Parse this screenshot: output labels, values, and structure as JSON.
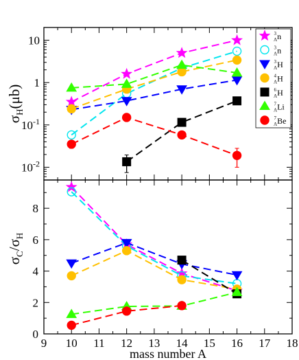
{
  "chart_data": [
    {
      "type": "line",
      "panel": "top",
      "ylabel": {
        "main": "σ",
        "sub": "H",
        "unit": "(μb)"
      },
      "yscale": "log",
      "ylim": [
        0.005,
        20
      ],
      "yticks": [
        {
          "value": 0.01,
          "base": "10",
          "exp": "-2"
        },
        {
          "value": 0.1,
          "base": "10",
          "exp": "-1"
        },
        {
          "value": 1,
          "base": "1",
          "exp": ""
        },
        {
          "value": 10,
          "base": "10",
          "exp": ""
        }
      ],
      "xlim": [
        9,
        18
      ],
      "grid": false,
      "legend_position": "top-right",
      "series": [
        {
          "name": "n",
          "sup": "3",
          "sub": "Λ",
          "color": "#ff00ff",
          "marker": "star",
          "filled": true,
          "points": [
            [
              10,
              0.35
            ],
            [
              12,
              1.6
            ],
            [
              14,
              5.0
            ],
            [
              16,
              10.0
            ]
          ]
        },
        {
          "name": "n",
          "sup": "3",
          "sub": "Λ",
          "color": "#00e5ee",
          "marker": "circle",
          "filled": false,
          "points": [
            [
              10,
              0.058
            ],
            [
              12,
              0.55
            ],
            [
              14,
              2.2
            ],
            [
              16,
              5.5
            ]
          ]
        },
        {
          "name": "H",
          "sup": "3",
          "sub": "Λ",
          "color": "#0000ff",
          "marker": "triangle-down",
          "filled": true,
          "points": [
            [
              10,
              0.23
            ],
            [
              12,
              0.37
            ],
            [
              14,
              0.7
            ],
            [
              16,
              1.15
            ]
          ]
        },
        {
          "name": "H",
          "sup": "4",
          "sub": "Λ",
          "color": "#ffc000",
          "marker": "circle",
          "filled": true,
          "points": [
            [
              10,
              0.24
            ],
            [
              12,
              0.7
            ],
            [
              14,
              1.8
            ],
            [
              16,
              3.4
            ]
          ]
        },
        {
          "name": "H",
          "sup": "6",
          "sub": "Λ",
          "color": "#000000",
          "marker": "square",
          "filled": true,
          "points": [
            [
              12,
              0.0135
            ],
            [
              14,
              0.115
            ],
            [
              16,
              0.37
            ]
          ],
          "errors": [
            0.006,
            0.0,
            0.0
          ]
        },
        {
          "name": "Li",
          "sup": "7",
          "sub": "Λ",
          "color": "#33ff00",
          "marker": "triangle-up",
          "filled": true,
          "points": [
            [
              10,
              0.75
            ],
            [
              12,
              0.92
            ],
            [
              14,
              2.6
            ],
            [
              16,
              1.7
            ]
          ]
        },
        {
          "name": "Be",
          "sup": "7",
          "sub": "Λ",
          "color": "#ff0000",
          "marker": "circle",
          "filled": true,
          "points": [
            [
              10,
              0.035
            ],
            [
              12,
              0.15
            ],
            [
              14,
              0.058
            ],
            [
              16,
              0.019
            ]
          ],
          "errors": [
            0.007,
            0.0,
            0.008,
            0.009
          ]
        }
      ]
    },
    {
      "type": "line",
      "panel": "bottom",
      "ylabel": {
        "num": "σ",
        "num_sub": "C",
        "den": "σ",
        "den_sub": "H"
      },
      "ylim": [
        0,
        9.8
      ],
      "yticks": [
        0,
        2,
        4,
        6,
        8
      ],
      "xlim": [
        9,
        18
      ],
      "xticks": [
        9,
        10,
        11,
        12,
        13,
        14,
        15,
        16,
        17,
        18
      ],
      "xlabel": "mass number A",
      "grid": false,
      "series": [
        {
          "color": "#ff00ff",
          "marker": "star",
          "filled": true,
          "points": [
            [
              10,
              9.35
            ],
            [
              12,
              5.7
            ],
            [
              14,
              3.85
            ],
            [
              16,
              2.75
            ]
          ]
        },
        {
          "color": "#00e5ee",
          "marker": "circle",
          "filled": false,
          "points": [
            [
              10,
              9.05
            ],
            [
              12,
              5.6
            ],
            [
              14,
              3.7
            ],
            [
              16,
              3.2
            ]
          ]
        },
        {
          "color": "#0000ff",
          "marker": "triangle-down",
          "filled": true,
          "points": [
            [
              10,
              4.5
            ],
            [
              12,
              5.8
            ],
            [
              14,
              4.45
            ],
            [
              16,
              3.75
            ]
          ]
        },
        {
          "color": "#ffc000",
          "marker": "circle",
          "filled": true,
          "points": [
            [
              10,
              3.7
            ],
            [
              12,
              5.3
            ],
            [
              14,
              3.45
            ],
            [
              16,
              2.85
            ]
          ]
        },
        {
          "color": "#000000",
          "marker": "square",
          "filled": true,
          "points": [
            [
              14,
              4.7
            ],
            [
              16,
              2.55
            ]
          ]
        },
        {
          "color": "#33ff00",
          "marker": "triangle-up",
          "filled": true,
          "points": [
            [
              10,
              1.25
            ],
            [
              12,
              1.75
            ],
            [
              14,
              1.78
            ],
            [
              16,
              2.65
            ]
          ]
        },
        {
          "color": "#ff0000",
          "marker": "circle",
          "filled": true,
          "points": [
            [
              10,
              0.55
            ],
            [
              12,
              1.45
            ],
            [
              14,
              1.8
            ]
          ]
        }
      ]
    }
  ]
}
